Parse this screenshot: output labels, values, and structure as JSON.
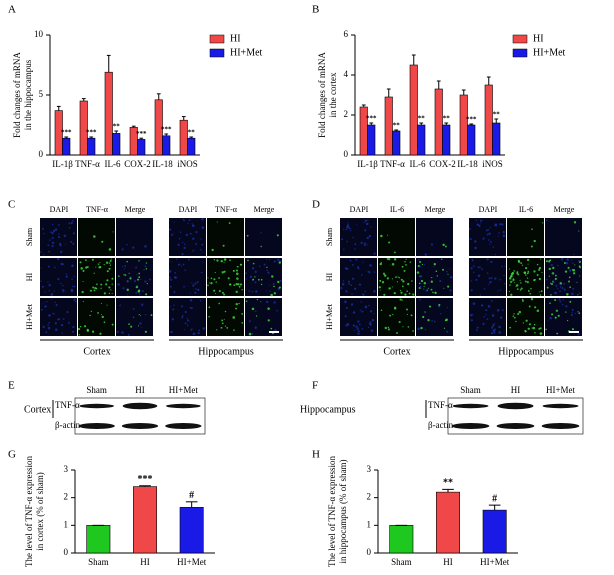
{
  "chart_data": [
    {
      "type": "bar",
      "panel": "A",
      "ylabel": [
        "Fold changes of mRNA",
        "in the hippocampus"
      ],
      "categories": [
        "IL-1β",
        "TNF-α",
        "IL-6",
        "COX-2",
        "IL-18",
        "iNOS"
      ],
      "series": [
        {
          "name": "HI",
          "color": "#f04848",
          "values": [
            3.7,
            4.5,
            6.9,
            2.3,
            4.6,
            2.9
          ],
          "errors": [
            0.35,
            0.2,
            1.4,
            0.1,
            0.5,
            0.3
          ]
        },
        {
          "name": "HI+Met",
          "color": "#1a1ae6",
          "values": [
            1.4,
            1.4,
            1.8,
            1.3,
            1.6,
            1.4
          ],
          "errors": [
            0.1,
            0.1,
            0.2,
            0.1,
            0.15,
            0.1
          ],
          "labels": [
            "***",
            "***",
            "**",
            "***",
            "***",
            "**"
          ]
        }
      ],
      "ylim": [
        0,
        10
      ],
      "yticks": [
        0,
        5,
        10
      ],
      "legend": "upper right"
    },
    {
      "type": "bar",
      "panel": "B",
      "ylabel": [
        "Fold changes of mRNA",
        "in the cortex"
      ],
      "categories": [
        "IL-1β",
        "TNF-α",
        "IL-6",
        "COX-2",
        "IL-18",
        "iNOS"
      ],
      "series": [
        {
          "name": "HI",
          "color": "#f04848",
          "values": [
            2.4,
            2.9,
            4.5,
            3.3,
            3.0,
            3.5
          ],
          "errors": [
            0.1,
            0.4,
            0.5,
            0.4,
            0.25,
            0.4
          ]
        },
        {
          "name": "HI+Met",
          "color": "#1a1ae6",
          "values": [
            1.5,
            1.2,
            1.5,
            1.5,
            1.5,
            1.6
          ],
          "errors": [
            0.1,
            0.05,
            0.1,
            0.1,
            0.05,
            0.2
          ],
          "labels": [
            "***",
            "**",
            "**",
            "**",
            "***",
            "**"
          ]
        }
      ],
      "ylim": [
        0,
        6
      ],
      "yticks": [
        0,
        2,
        4,
        6
      ],
      "legend": "upper right"
    },
    {
      "type": "bar",
      "panel": "G",
      "ylabel": [
        "The level of TNF-α expression",
        "in cortex (% of sham)"
      ],
      "categories": [
        "Sham",
        "HI",
        "HI+Met"
      ],
      "series": [
        {
          "colors": [
            "#1ec81e",
            "#f04848",
            "#1a1ae6"
          ],
          "values": [
            1,
            2.4,
            1.65
          ],
          "errors": [
            0,
            0.03,
            0.2
          ],
          "labels": [
            null,
            "***",
            "#"
          ]
        }
      ],
      "ylim": [
        0,
        3
      ],
      "yticks": [
        0,
        1,
        2,
        3
      ]
    },
    {
      "type": "bar",
      "panel": "H",
      "ylabel": [
        "The level of TNF-α expression",
        "in hippocampus (% of sham)"
      ],
      "categories": [
        "Sham",
        "HI",
        "HI+Met"
      ],
      "series": [
        {
          "colors": [
            "#1ec81e",
            "#f04848",
            "#1a1ae6"
          ],
          "values": [
            1,
            2.2,
            1.55
          ],
          "errors": [
            0,
            0.1,
            0.18
          ],
          "labels": [
            null,
            "**",
            "#"
          ]
        }
      ],
      "ylim": [
        0,
        3
      ],
      "yticks": [
        0,
        1,
        2,
        3
      ]
    }
  ],
  "micrographs": [
    {
      "panel": "C",
      "columns": [
        "DAPI",
        "TNF-α",
        "Merge",
        "DAPI",
        "TNF-α",
        "Merge"
      ],
      "rows": [
        "Sham",
        "HI",
        "HI+Met"
      ],
      "groups": [
        "Cortex",
        "Hippocampus"
      ]
    },
    {
      "panel": "D",
      "columns": [
        "DAPI",
        "IL-6",
        "Merge",
        "DAPI",
        "IL-6",
        "Merge"
      ],
      "rows": [
        "Sham",
        "HI",
        "HI+Met"
      ],
      "groups": [
        "Cortex",
        "Hippocampus"
      ]
    }
  ],
  "blots": [
    {
      "panel": "E",
      "region": "Cortex",
      "lanes": [
        "Sham",
        "HI",
        "HI+Met"
      ],
      "bands": [
        "TNF-α",
        "β-actin"
      ]
    },
    {
      "panel": "F",
      "region": "Hippocampus",
      "lanes": [
        "Sham",
        "HI",
        "HI+Met"
      ],
      "bands": [
        "TNF-α",
        "β-actin"
      ]
    }
  ]
}
